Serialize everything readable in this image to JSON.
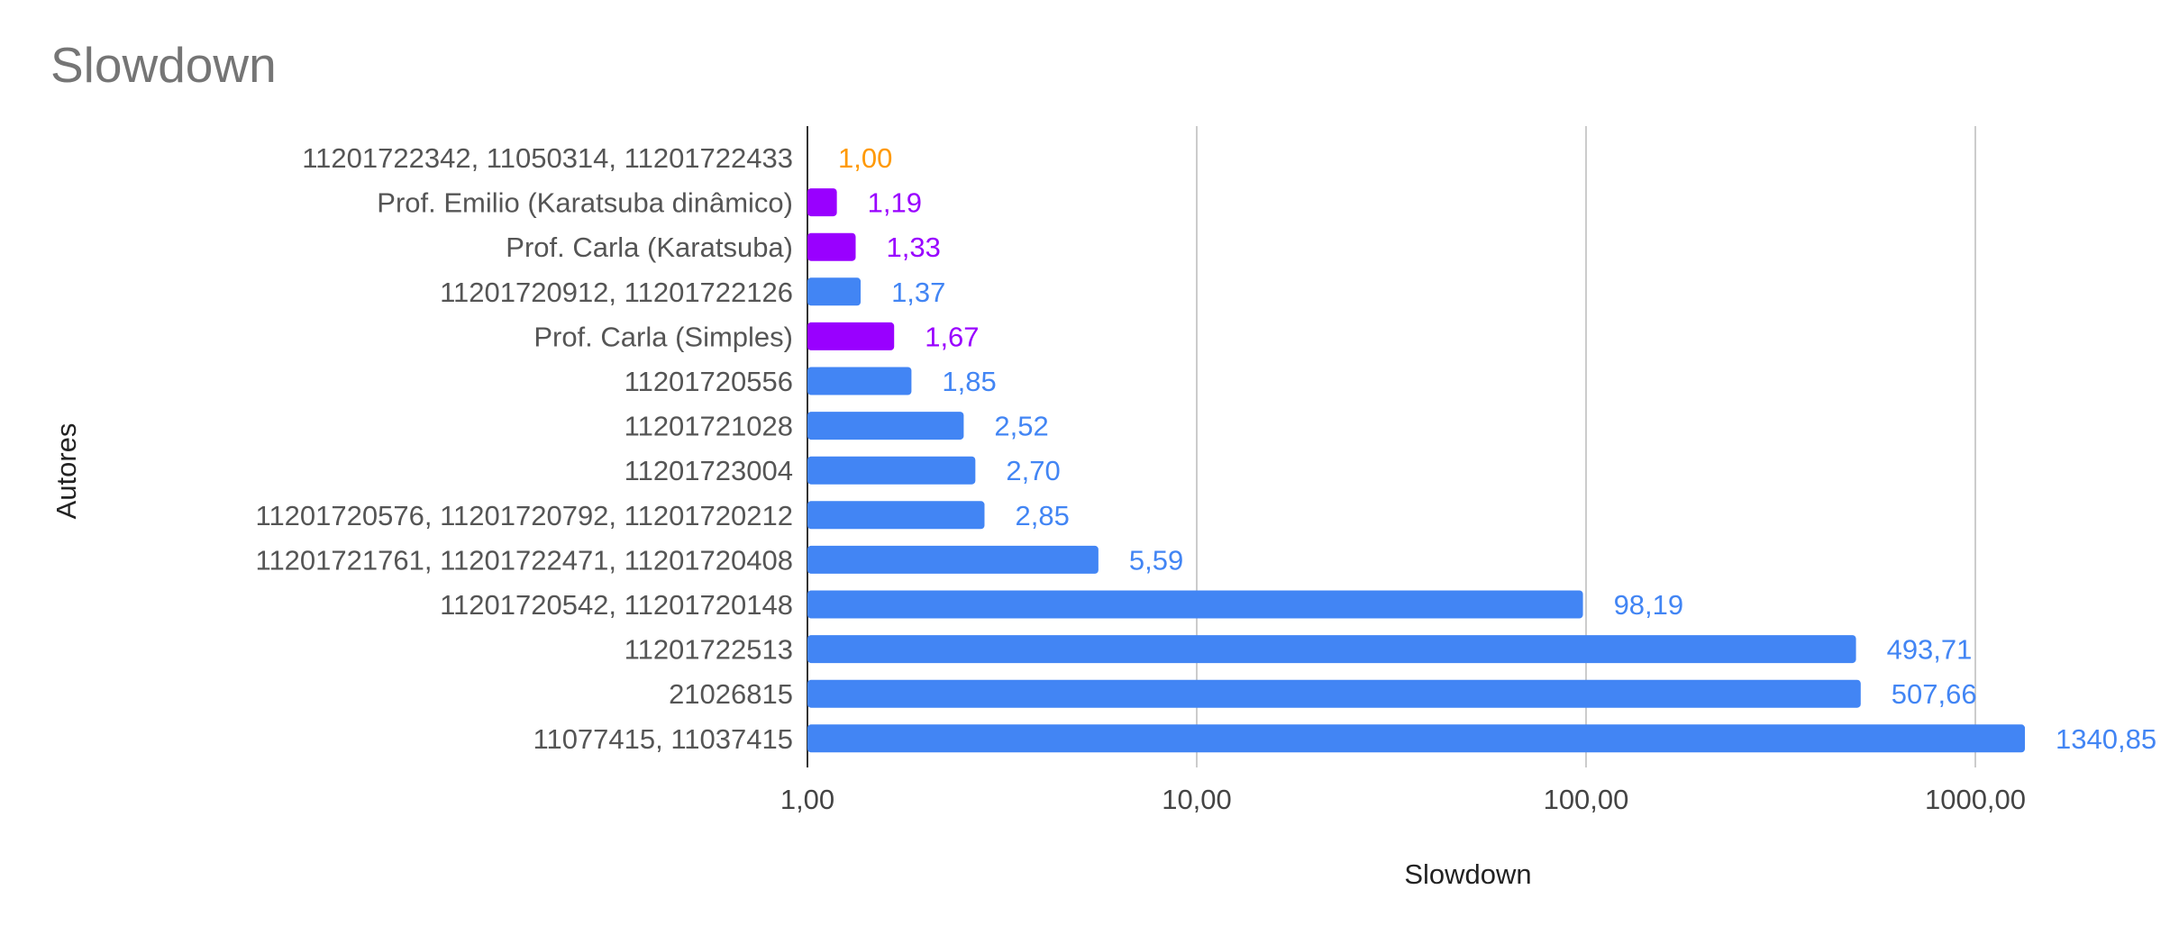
{
  "chart_data": {
    "type": "bar",
    "orientation": "horizontal",
    "title": "Slowdown",
    "xlabel": "Slowdown",
    "ylabel": "Autores",
    "x_scale": "log",
    "xlim": [
      1,
      1000
    ],
    "x_ticks": [
      "1,00",
      "10,00",
      "100,00",
      "1000,00"
    ],
    "x_tick_values": [
      1,
      10,
      100,
      1000
    ],
    "grid": "vertical",
    "legend": "none",
    "colors": {
      "blue": "#4285f4",
      "purple": "#9900ff",
      "orange": "#ff9900"
    },
    "categories": [
      "11201722342, 11050314, 11201722433",
      "Prof. Emilio (Karatsuba dinâmico)",
      "Prof. Carla (Karatsuba)",
      "11201720912, 11201722126",
      "Prof. Carla (Simples)",
      "11201720556",
      "11201721028",
      "11201723004",
      "11201720576, 11201720792, 11201720212",
      "11201721761, 11201722471, 11201720408",
      "11201720542, 11201720148",
      "11201722513",
      "21026815",
      "11077415, 11037415"
    ],
    "values": [
      1.0,
      1.19,
      1.33,
      1.37,
      1.67,
      1.85,
      2.52,
      2.7,
      2.85,
      5.59,
      98.19,
      493.71,
      507.66,
      1340.85
    ],
    "value_labels": [
      "1,00",
      "1,19",
      "1,33",
      "1,37",
      "1,67",
      "1,85",
      "2,52",
      "2,70",
      "2,85",
      "5,59",
      "98,19",
      "493,71",
      "507,66",
      "1340,85"
    ],
    "bar_colors": [
      "#ff9900",
      "#9900ff",
      "#9900ff",
      "#4285f4",
      "#9900ff",
      "#4285f4",
      "#4285f4",
      "#4285f4",
      "#4285f4",
      "#4285f4",
      "#4285f4",
      "#4285f4",
      "#4285f4",
      "#4285f4"
    ]
  }
}
